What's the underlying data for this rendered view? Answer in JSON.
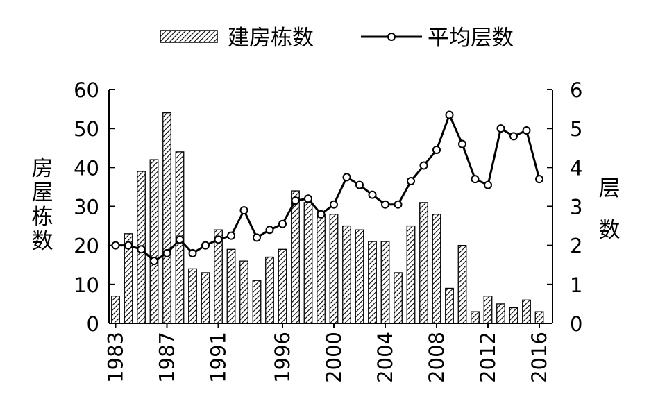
{
  "chart_data": {
    "type": "bar",
    "ylabel": "房屋栋数",
    "y2label": "层数",
    "ylim": [
      0,
      60
    ],
    "y2lim": [
      0,
      6
    ],
    "yticks": [
      0,
      10,
      20,
      30,
      40,
      50,
      60
    ],
    "y2ticks": [
      0,
      1,
      2,
      3,
      4,
      5,
      6
    ],
    "xtick_labels": [
      "1983",
      "1987",
      "1991",
      "1996",
      "2000",
      "2004",
      "2008",
      "2012",
      "2016"
    ],
    "xtick_years": [
      1983,
      1987,
      1991,
      1996,
      2000,
      2004,
      2008,
      2012,
      2016
    ],
    "legend": {
      "position": "top",
      "bar_label": "建房栋数",
      "line_label": "平均层数"
    },
    "x": [
      1983,
      1984,
      1985,
      1986,
      1987,
      1988,
      1989,
      1990,
      1991,
      1992,
      1993,
      1994,
      1995,
      1996,
      1997,
      1998,
      1999,
      2000,
      2001,
      2002,
      2003,
      2004,
      2005,
      2006,
      2007,
      2008,
      2009,
      2010,
      2011,
      2012,
      2013,
      2014,
      2015,
      2016,
      2017
    ],
    "series": [
      {
        "name": "建房栋数",
        "type": "bar",
        "axis": "left",
        "values": [
          7,
          23,
          39,
          42,
          54,
          44,
          14,
          13,
          24,
          19,
          16,
          11,
          17,
          19,
          34,
          31,
          28,
          28,
          25,
          24,
          21,
          21,
          13,
          25,
          31,
          28,
          9,
          20,
          3,
          7,
          5,
          4,
          6,
          3,
          0
        ]
      },
      {
        "name": "平均层数",
        "type": "line",
        "axis": "right",
        "values": [
          2.0,
          2.0,
          1.9,
          1.6,
          1.8,
          2.15,
          1.8,
          2.0,
          2.15,
          2.25,
          2.9,
          2.2,
          2.4,
          2.55,
          3.15,
          3.2,
          2.8,
          3.05,
          3.75,
          3.55,
          3.3,
          3.05,
          3.05,
          3.65,
          4.05,
          4.45,
          5.35,
          4.6,
          3.7,
          3.55,
          5.0,
          4.8,
          4.95,
          3.7,
          null
        ]
      }
    ]
  }
}
